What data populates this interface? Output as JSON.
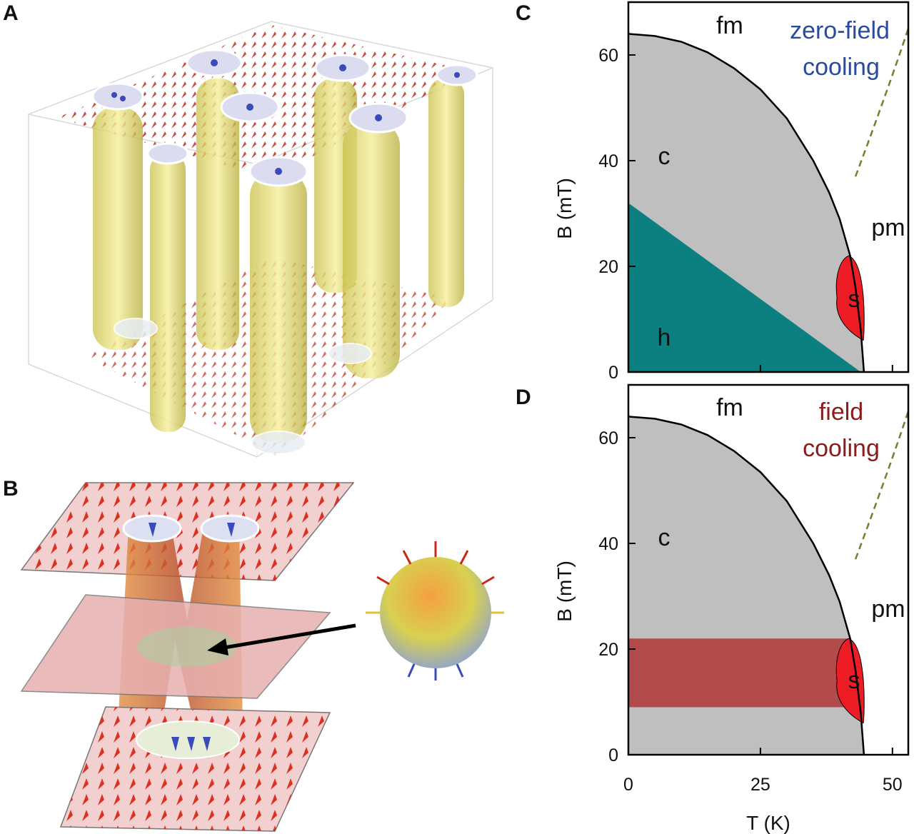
{
  "panels": {
    "a": "A",
    "b": "B",
    "c": "C",
    "d": "D"
  },
  "colors": {
    "conical": "#bfbfbf",
    "helical": "#0c8080",
    "skyrmion": "#ee1c25",
    "field_cooled_band": "#b24b4b",
    "zero_field_text": "#2a4aa0",
    "field_cooling_text": "#8a1c1c",
    "dashed_line": "#7a7a30",
    "arrows_red": "#d23a2a",
    "arrows_blue": "#3a4ab8",
    "tubes_yellow": "#e8e07a"
  },
  "illustrations": {
    "a": "skyrmion-lattice-3d-icon",
    "b": "skyrmion-merging-hedgehog-icon"
  },
  "chart_data": [
    {
      "panel": "C",
      "type": "area",
      "title": "",
      "annotation": [
        "zero-field",
        "cooling"
      ],
      "xlabel": "",
      "ylabel": "B (mT)",
      "xlim": [
        0,
        53
      ],
      "ylim": [
        0,
        70
      ],
      "yticks": [
        0,
        20,
        40,
        60
      ],
      "xticks": [
        0,
        25,
        50
      ],
      "show_x_tick_labels": false,
      "regions": [
        {
          "label": "fm",
          "fill": "none"
        },
        {
          "label": "c",
          "fill": "conical"
        },
        {
          "label": "h",
          "fill": "helical"
        },
        {
          "label": "s",
          "fill": "skyrmion"
        },
        {
          "label": "pm",
          "fill": "none"
        }
      ],
      "phase_boundary": {
        "T": [
          0,
          5,
          10,
          15,
          20,
          25,
          30,
          35,
          38,
          40,
          42,
          43,
          44,
          44.6
        ],
        "B": [
          64,
          63.6,
          62.5,
          60.5,
          57.5,
          53.5,
          48,
          40,
          34,
          29,
          22,
          16,
          8,
          0
        ]
      },
      "helical_boundary": {
        "T": [
          0,
          44
        ],
        "B": [
          32,
          0
        ]
      },
      "skyrmion_pocket": {
        "T_center": 42,
        "T_width": 5,
        "B_range": [
          6,
          22
        ]
      },
      "dashed_line": {
        "T": [
          43,
          53
        ],
        "B": [
          37,
          65
        ]
      }
    },
    {
      "panel": "D",
      "type": "area",
      "title": "",
      "annotation": [
        "field",
        "cooling"
      ],
      "xlabel": "T (K)",
      "ylabel": "B (mT)",
      "xlim": [
        0,
        53
      ],
      "ylim": [
        0,
        70
      ],
      "yticks": [
        0,
        20,
        40,
        60
      ],
      "xticks": [
        0,
        25,
        50
      ],
      "show_x_tick_labels": true,
      "regions": [
        {
          "label": "fm",
          "fill": "none"
        },
        {
          "label": "c",
          "fill": "conical"
        },
        {
          "label": "s",
          "fill": "skyrmion"
        },
        {
          "label": "pm",
          "fill": "none"
        }
      ],
      "phase_boundary": {
        "T": [
          0,
          5,
          10,
          15,
          20,
          25,
          30,
          35,
          38,
          40,
          42,
          43,
          44,
          44.6
        ],
        "B": [
          64,
          63.6,
          62.5,
          60.5,
          57.5,
          53.5,
          48,
          40,
          34,
          29,
          22,
          16,
          8,
          0
        ]
      },
      "field_cooled_band": {
        "T": [
          0,
          42
        ],
        "B": [
          9,
          22
        ]
      },
      "skyrmion_pocket": {
        "T_center": 42,
        "T_width": 5,
        "B_range": [
          6,
          22
        ]
      },
      "dashed_line": {
        "T": [
          43,
          53
        ],
        "B": [
          37,
          65
        ]
      }
    }
  ]
}
